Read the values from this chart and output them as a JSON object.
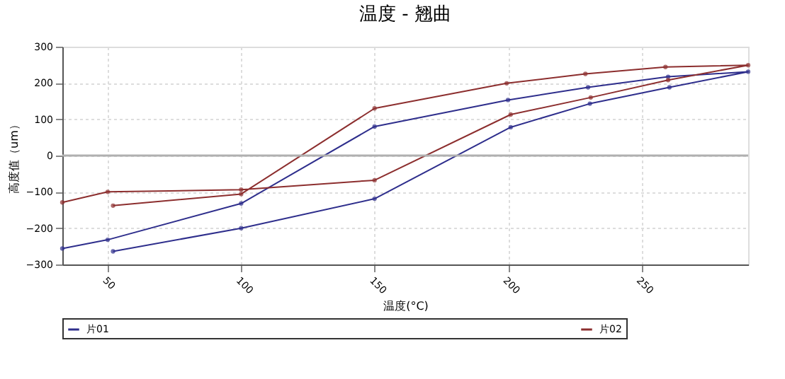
{
  "chart_data": {
    "type": "line",
    "title": "温度 - 翘曲",
    "xlabel": "温度(°C)",
    "ylabel": "高度值（um）",
    "xlim": [
      33,
      290
    ],
    "xticks": [
      50,
      100,
      150,
      200,
      250
    ],
    "ylim": [
      -300,
      300
    ],
    "yticks": [
      -300,
      -200,
      -100,
      0,
      100,
      200,
      300
    ],
    "grid": true,
    "legend": "bottom",
    "marker": "circle",
    "line_style": "solid",
    "ref_lines": [
      {
        "axis": "y",
        "value": 0,
        "color": "#b0b0b0"
      }
    ],
    "series": [
      {
        "name": "片01",
        "color": "#2e2e8c",
        "x": [
          33,
          50,
          100,
          150,
          200,
          230,
          260,
          290,
          260.5,
          230.7,
          201,
          150,
          100,
          52
        ],
        "values": [
          -256,
          -232,
          -132,
          80,
          153,
          188,
          217,
          231,
          188,
          143,
          78,
          -119,
          -200,
          -264
        ]
      },
      {
        "name": "片02",
        "color": "#8c2e2e",
        "x": [
          33,
          50,
          100,
          150,
          201,
          231,
          260,
          290,
          259,
          229,
          199.5,
          150,
          100,
          52
        ],
        "values": [
          -129,
          -100,
          -94,
          -68,
          113,
          160,
          208,
          249,
          244,
          225,
          199,
          130,
          -106,
          -138
        ]
      }
    ]
  }
}
